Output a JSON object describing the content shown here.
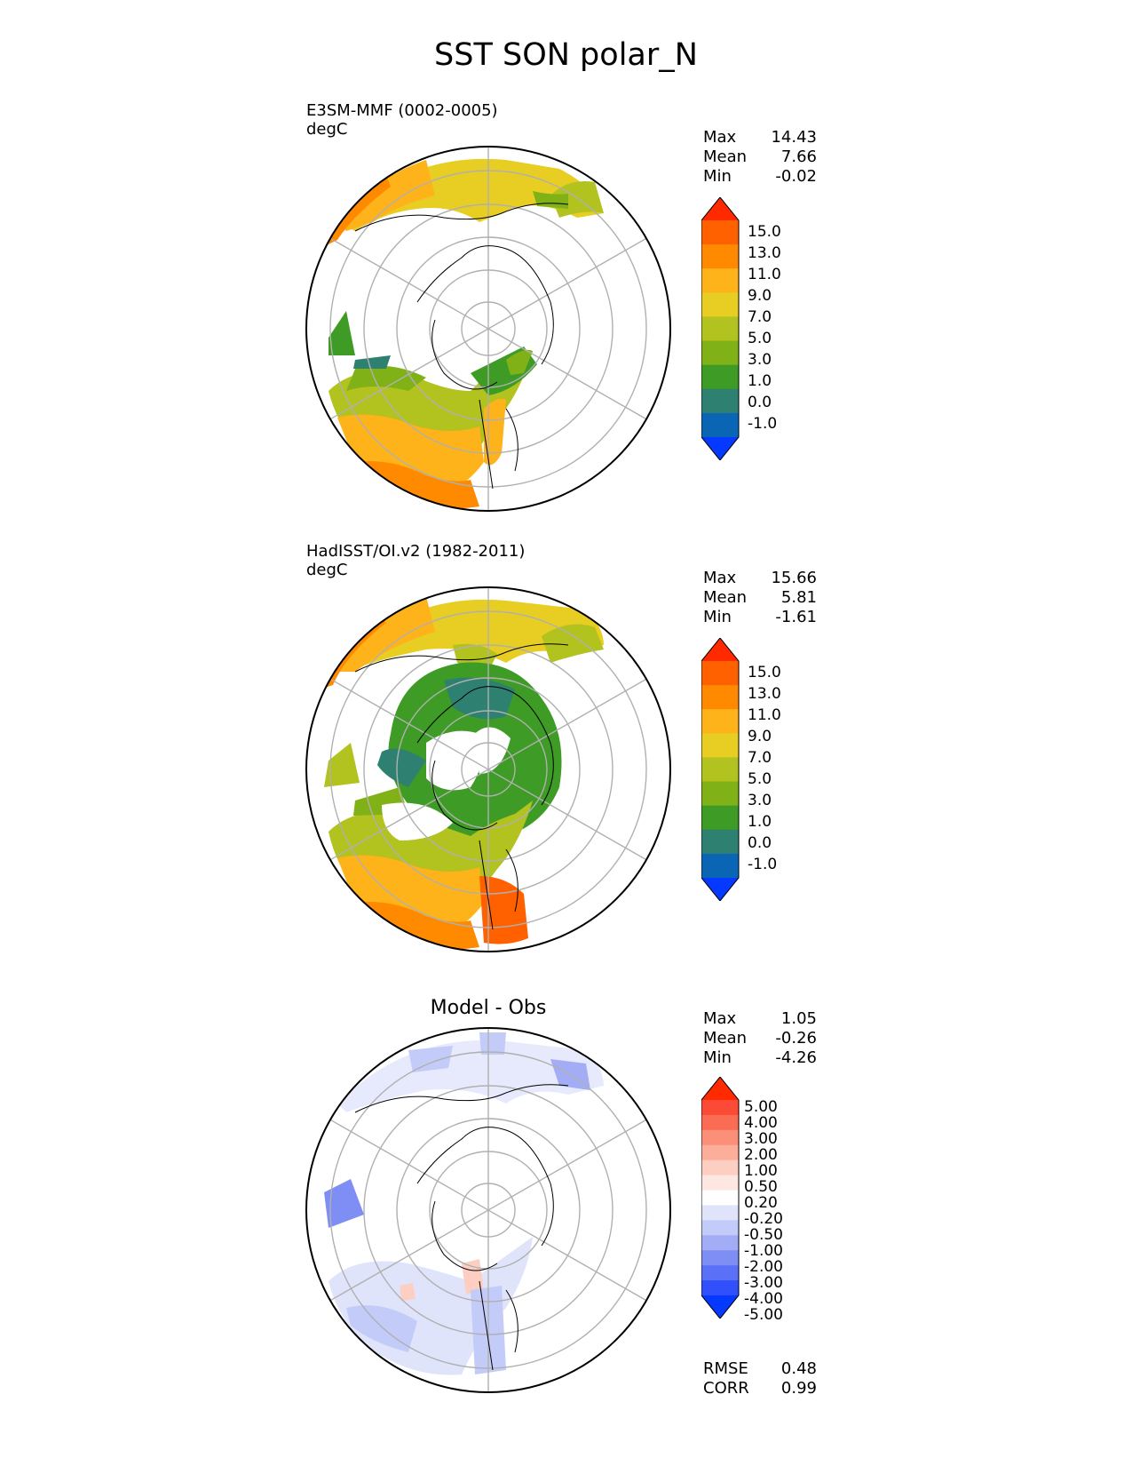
{
  "title": "SST SON polar_N",
  "panels": [
    {
      "id": "model",
      "label": "E3SM-MMF (0002-0005)",
      "units": "degC",
      "stats": [
        {
          "name": "Max",
          "value": "14.43"
        },
        {
          "name": "Mean",
          "value": "7.66"
        },
        {
          "name": "Min",
          "value": "-0.02"
        }
      ],
      "colorbar": {
        "ticks": [
          "15.0",
          "13.0",
          "11.0",
          "9.0",
          "7.0",
          "5.0",
          "3.0",
          "1.0",
          "0.0",
          "-1.0"
        ],
        "colors": [
          "#ff2a00",
          "#ff6100",
          "#ff8a00",
          "#ffb31a",
          "#e8cd22",
          "#b2c21e",
          "#80b218",
          "#3d9b26",
          "#2e8070",
          "#0a66b5",
          "#0539ff"
        ]
      }
    },
    {
      "id": "obs",
      "label": "HadISST/OI.v2 (1982-2011)",
      "units": "degC",
      "stats": [
        {
          "name": "Max",
          "value": "15.66"
        },
        {
          "name": "Mean",
          "value": "5.81"
        },
        {
          "name": "Min",
          "value": "-1.61"
        }
      ],
      "colorbar": {
        "ticks": [
          "15.0",
          "13.0",
          "11.0",
          "9.0",
          "7.0",
          "5.0",
          "3.0",
          "1.0",
          "0.0",
          "-1.0"
        ],
        "colors": [
          "#ff2a00",
          "#ff6100",
          "#ff8a00",
          "#ffb31a",
          "#e8cd22",
          "#b2c21e",
          "#80b218",
          "#3d9b26",
          "#2e8070",
          "#0a66b5",
          "#0539ff"
        ]
      }
    },
    {
      "id": "diff",
      "label": "Model - Obs",
      "stats": [
        {
          "name": "Max",
          "value": "1.05"
        },
        {
          "name": "Mean",
          "value": "-0.26"
        },
        {
          "name": "Min",
          "value": "-4.26"
        }
      ],
      "extra_stats": [
        {
          "name": "RMSE",
          "value": "0.48"
        },
        {
          "name": "CORR",
          "value": "0.99"
        }
      ],
      "colorbar": {
        "ticks": [
          "5.00",
          "4.00",
          "3.00",
          "2.00",
          "1.00",
          "0.50",
          "0.20",
          "-0.20",
          "-0.50",
          "-1.00",
          "-2.00",
          "-3.00",
          "-4.00",
          "-5.00"
        ],
        "colors": [
          "#ff2a00",
          "#fb4a35",
          "#fb6c55",
          "#fc8f78",
          "#fcae9a",
          "#fdcfc2",
          "#fde7e0",
          "#ffffff",
          "#dfe4fb",
          "#c3cbf8",
          "#a2adf6",
          "#7e8ef5",
          "#5a70f7",
          "#3150fb",
          "#0539ff"
        ]
      }
    }
  ]
}
